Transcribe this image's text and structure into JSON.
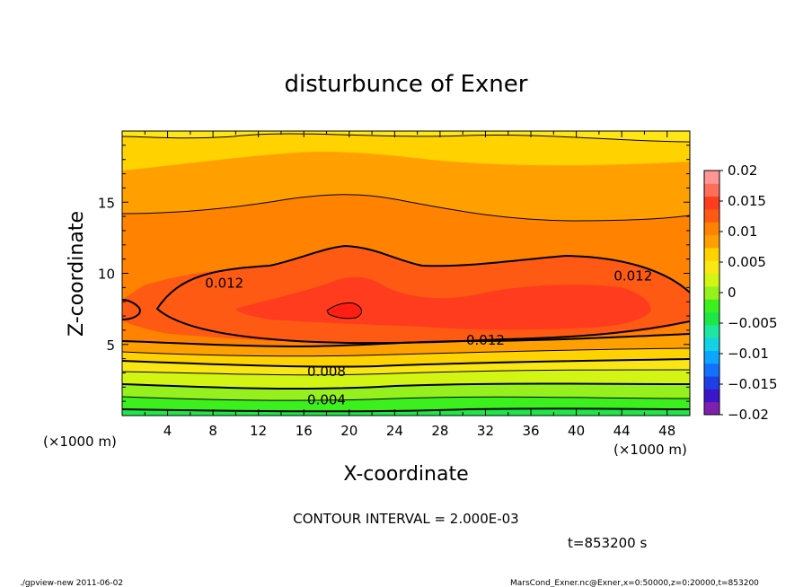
{
  "chart_data": {
    "type": "contour",
    "title": "disturbunce of Exner",
    "xlabel": "X-coordinate",
    "ylabel": "Z-coordinate",
    "x_unit": "(×1000 m)",
    "y_unit": "(×1000 m)",
    "xlim": [
      0,
      50
    ],
    "ylim": [
      0,
      20
    ],
    "x_ticks": [
      4,
      8,
      12,
      16,
      20,
      24,
      28,
      32,
      36,
      40,
      44,
      48
    ],
    "y_ticks": [
      5,
      10,
      15
    ],
    "contour_interval": "CONTOUR INTERVAL = 2.000E-03",
    "time_label": "t=853200 s",
    "contour_labels": [
      {
        "text": "0.012",
        "x": 9,
        "z": 9.3
      },
      {
        "text": "0.012",
        "x": 45,
        "z": 9.8
      },
      {
        "text": "0.012",
        "x": 32,
        "z": 5.3
      },
      {
        "text": "0.008",
        "x": 18,
        "z": 3.1
      },
      {
        "text": "0.004",
        "x": 18,
        "z": 1.1
      }
    ],
    "colorbar": {
      "min": -0.02,
      "max": 0.02,
      "tick_labels": [
        "0.02",
        "0.015",
        "0.01",
        "0.005",
        "0",
        "−0.005",
        "−0.01",
        "−0.015",
        "−0.02"
      ],
      "colors": [
        "#7f1fb0",
        "#3a16c8",
        "#1e3ee6",
        "#1470ff",
        "#0aa6ff",
        "#14d2e6",
        "#1ee6a0",
        "#1ee646",
        "#3cf01e",
        "#96f01e",
        "#d2f514",
        "#fae614",
        "#ffd200",
        "#ffa000",
        "#ff8200",
        "#ff5a14",
        "#ff3c1e",
        "#ff6e5a",
        "#ff9696"
      ]
    }
  },
  "footer": {
    "left": "./gpview-new   2011-06-02",
    "right": "MarsCond_Exner.nc@Exner,x=0:50000,z=0:20000,t=853200"
  }
}
